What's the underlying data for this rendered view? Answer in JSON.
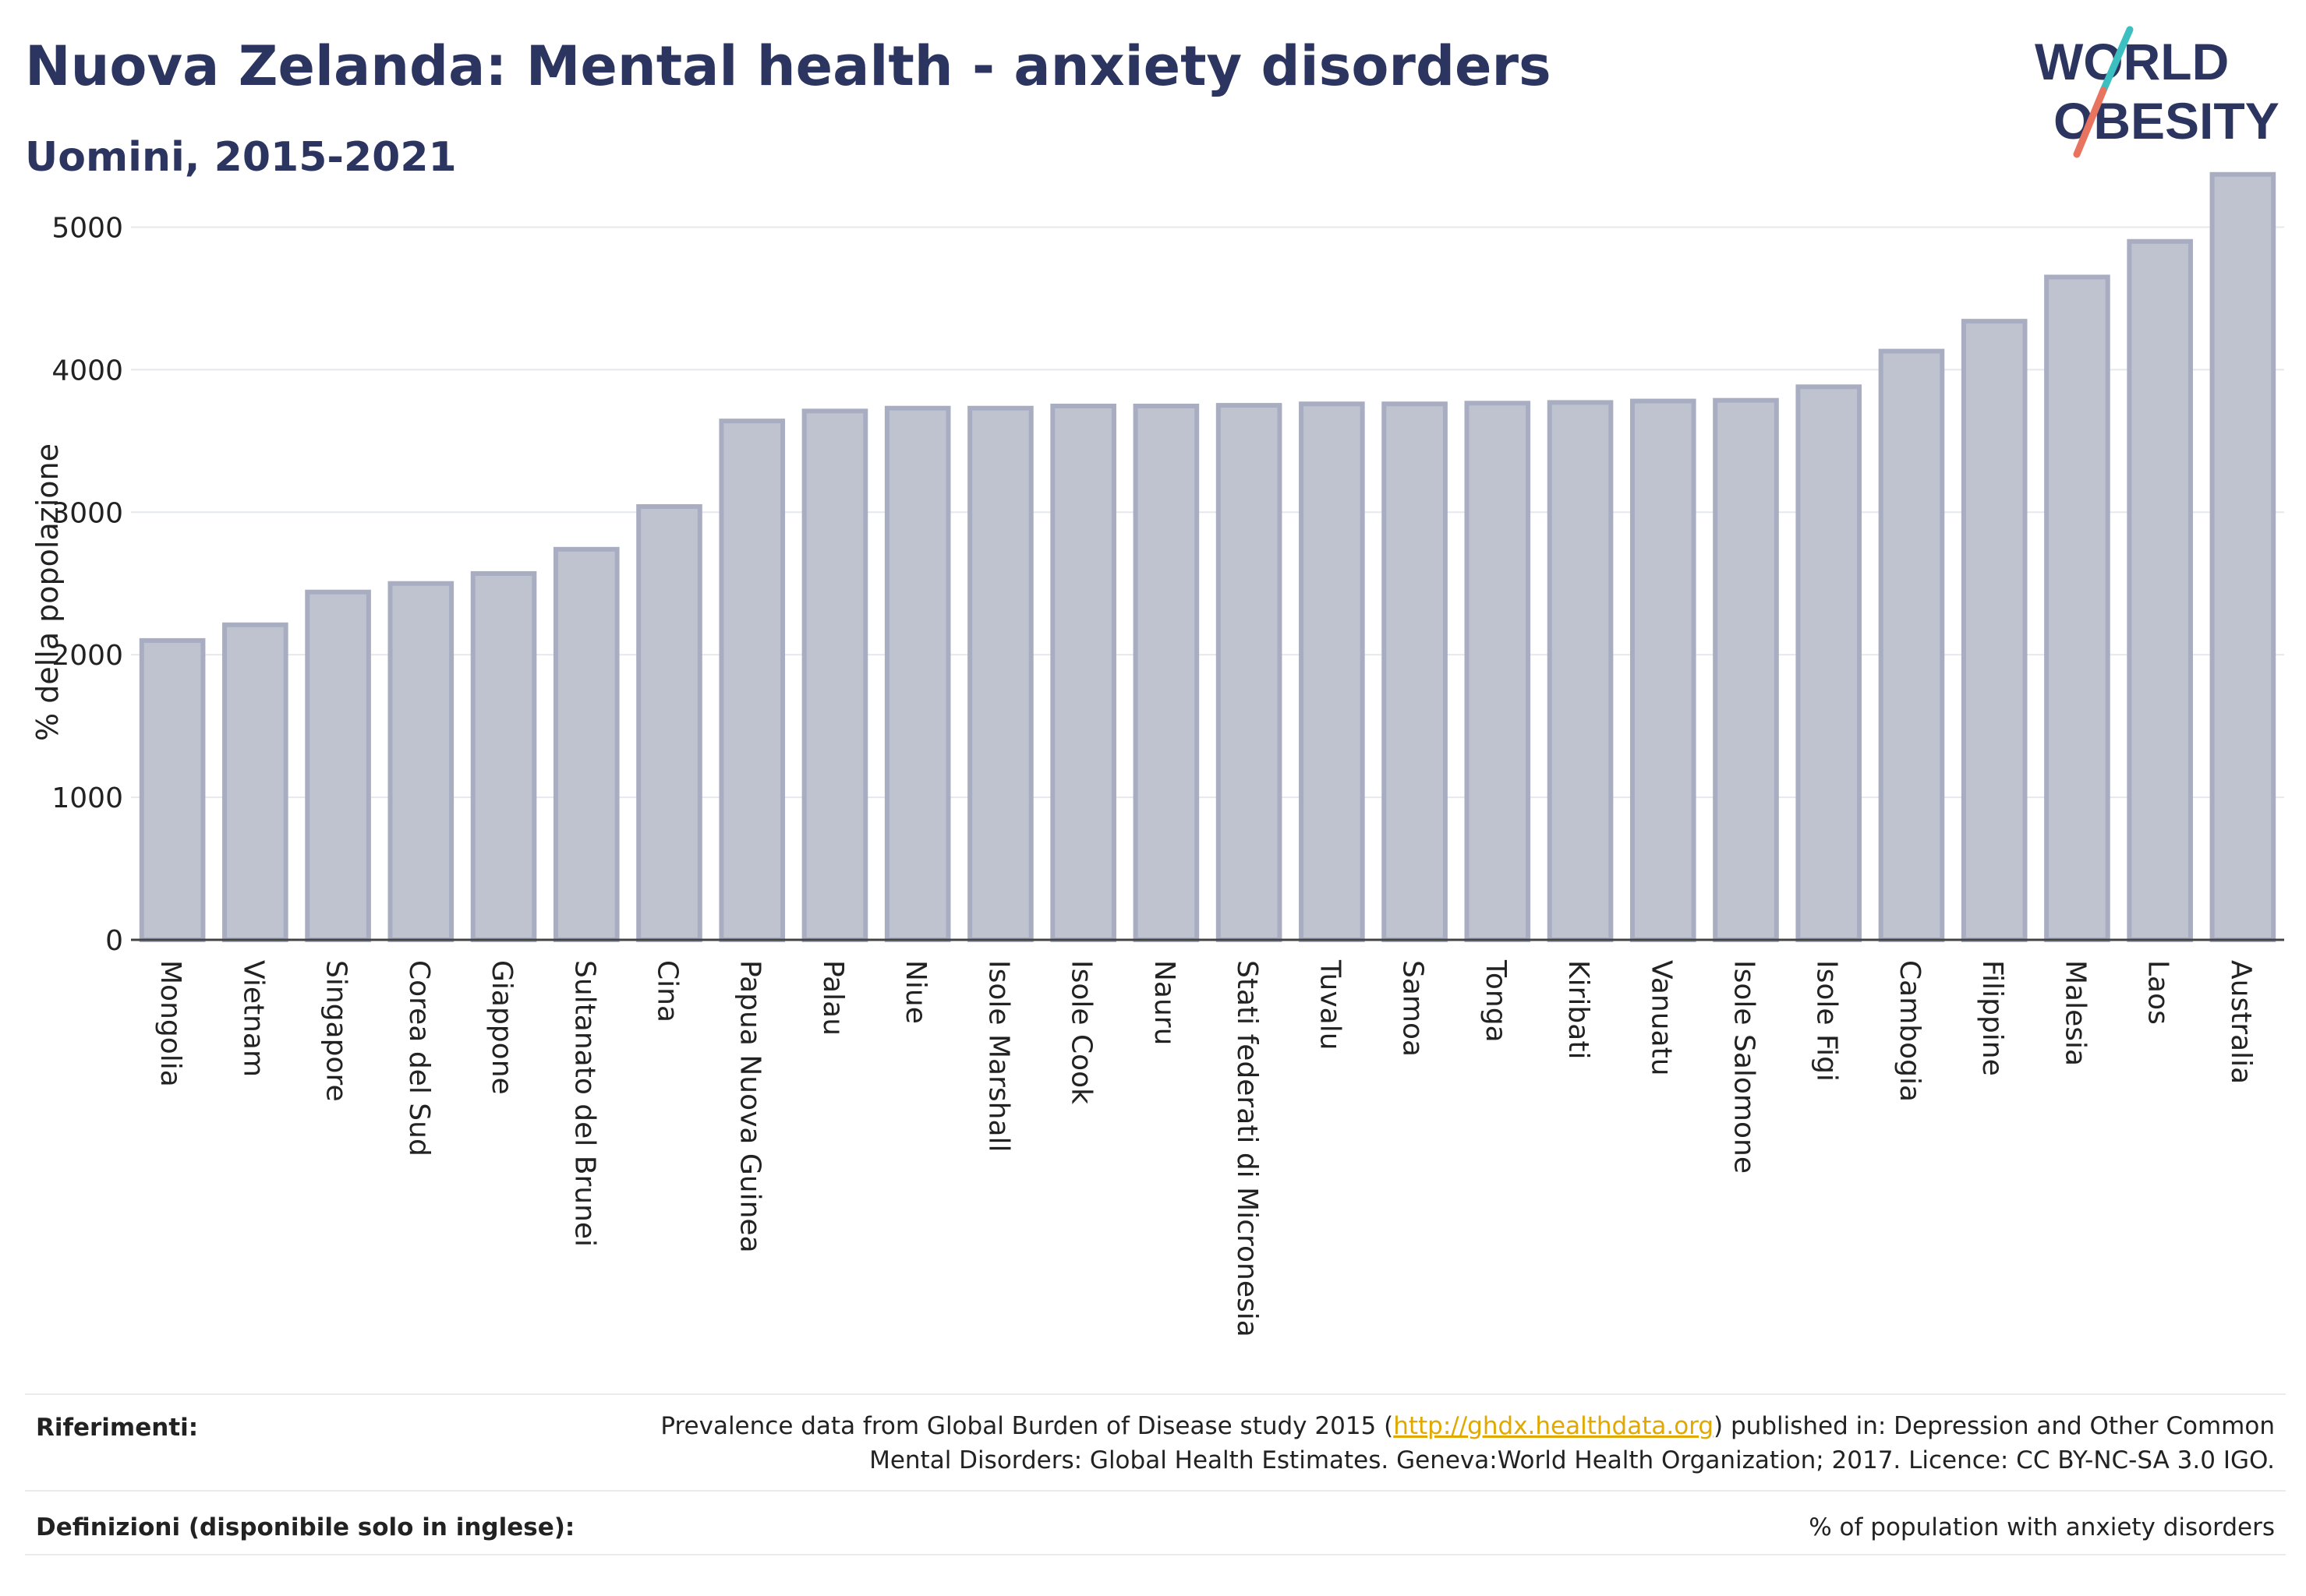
{
  "header": {
    "title": "Nuova Zelanda: Mental health - anxiety disorders",
    "subtitle": "Uomini, 2015-2021"
  },
  "logo": {
    "line1": "W  RLD",
    "line2": "  BESITY",
    "colors": {
      "text": "#2b3560",
      "slash_top": "#3bbfc1",
      "slash_bottom": "#e8735f"
    }
  },
  "chart_data": {
    "type": "bar",
    "title": "",
    "xlabel": "",
    "ylabel": "% della popolazione",
    "ylim": [
      0,
      5500
    ],
    "yticks": [
      0,
      1000,
      2000,
      3000,
      4000,
      5000
    ],
    "grid": true,
    "categories": [
      "Mongolia",
      "Vietnam",
      "Singapore",
      "Corea del Sud",
      "Giappone",
      "Sultanato del Brunei",
      "Cina",
      "Papua Nuova Guinea",
      "Palau",
      "Niue",
      "Isole Marshall",
      "Isole Cook",
      "Nauru",
      "Stati federati di Micronesia",
      "Tuvalu",
      "Samoa",
      "Tonga",
      "Kiribati",
      "Vanuatu",
      "Isole Salomone",
      "Isole Figi",
      "Cambogia",
      "Filippine",
      "Malesia",
      "Laos",
      "Australia"
    ],
    "values": [
      2100,
      2210,
      2440,
      2500,
      2570,
      2740,
      3040,
      3640,
      3710,
      3730,
      3730,
      3745,
      3745,
      3750,
      3760,
      3760,
      3765,
      3770,
      3780,
      3785,
      3880,
      4130,
      4340,
      4650,
      4900,
      5370
    ],
    "colors": {
      "bar_fill": "#bfc3d0",
      "bar_stroke": "#a8adc2",
      "axis": "#444444",
      "grid": "#e6e8ee"
    }
  },
  "footer": {
    "references_label": "Riferimenti:",
    "references_text_before": "Prevalence data from Global Burden of Disease study 2015 (",
    "references_link": "http://ghdx.healthdata.org",
    "references_text_after": ") published in: Depression and Other Common Mental Disorders: Global Health Estimates. Geneva:World Health Organization; 2017. Licence: CC BY-NC-SA 3.0 IGO.",
    "definitions_label": "Definizioni (disponibile solo in inglese):",
    "definitions_text": "% of population with anxiety disorders"
  }
}
